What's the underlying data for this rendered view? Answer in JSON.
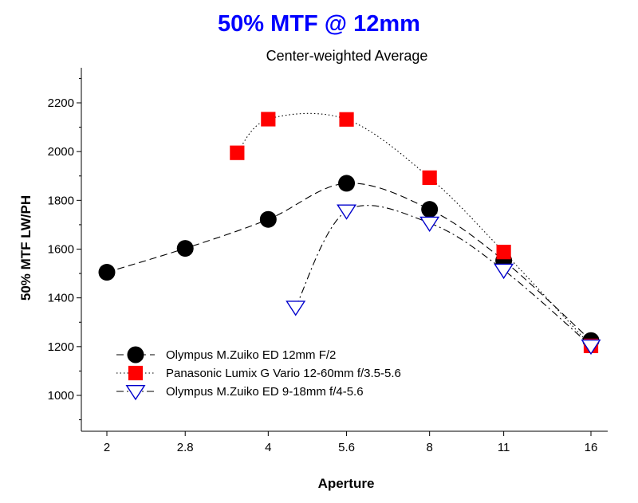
{
  "chart_data": {
    "type": "line",
    "title": "50% MTF @ 12mm",
    "subtitle": "Center-weighted Average",
    "xlabel": "Aperture",
    "ylabel": "50% MTF  LW/PH",
    "x_tick_labels": [
      "2",
      "2.8",
      "4",
      "5.6",
      "8",
      "11",
      "16"
    ],
    "y_ticks": [
      1000,
      1200,
      1400,
      1600,
      1800,
      2000,
      2200
    ],
    "ylim": [
      850,
      2350
    ],
    "x_scale": "log (aperture stops)",
    "grid": false,
    "legend_position": "bottom-left",
    "title_color": "#0000ff",
    "series": [
      {
        "name": "Olympus M.Zuiko ED 12mm F/2",
        "marker": "circle",
        "color": "#000000",
        "line_style": "dashed",
        "x": [
          2,
          2.8,
          4,
          5.6,
          8,
          11,
          16
        ],
        "y": [
          1505,
          1603,
          1722,
          1870,
          1763,
          1553,
          1225
        ]
      },
      {
        "name": "Panasonic Lumix G Vario 12-60mm f/3.5-5.6",
        "marker": "square",
        "color": "#ff0000",
        "line_style": "dotted",
        "x": [
          3.5,
          4,
          5.6,
          8,
          11,
          16
        ],
        "y": [
          1995,
          2133,
          2132,
          1893,
          1588,
          1203
        ]
      },
      {
        "name": "Olympus M.Zuiko ED 9-18mm f/4-5.6",
        "marker": "triangle-down",
        "color": "#0000cc",
        "line_style": "dash-dot",
        "x": [
          4.5,
          5.6,
          8,
          11,
          16
        ],
        "y": [
          1362,
          1757,
          1707,
          1514,
          1203
        ]
      }
    ]
  }
}
